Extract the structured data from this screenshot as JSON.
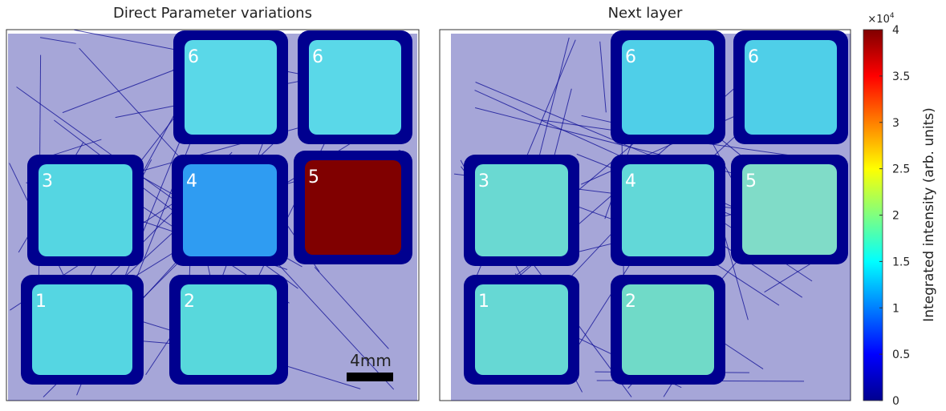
{
  "panels": [
    {
      "title": "Direct Parameter variations",
      "labels": [
        "6",
        "6",
        "3",
        "4",
        "5",
        "1",
        "2"
      ]
    },
    {
      "title": "Next layer",
      "labels": [
        "6",
        "6",
        "3",
        "4",
        "5",
        "1",
        "2"
      ]
    }
  ],
  "scale_bar": "4mm",
  "colorbar": {
    "label": "Integrated intensity (arb. units)",
    "multiplier": "×10",
    "exponent": "4",
    "lim": [
      0,
      4
    ],
    "ticks": [
      0,
      0.5,
      1,
      1.5,
      2,
      2.5,
      3,
      3.5,
      4
    ]
  }
}
